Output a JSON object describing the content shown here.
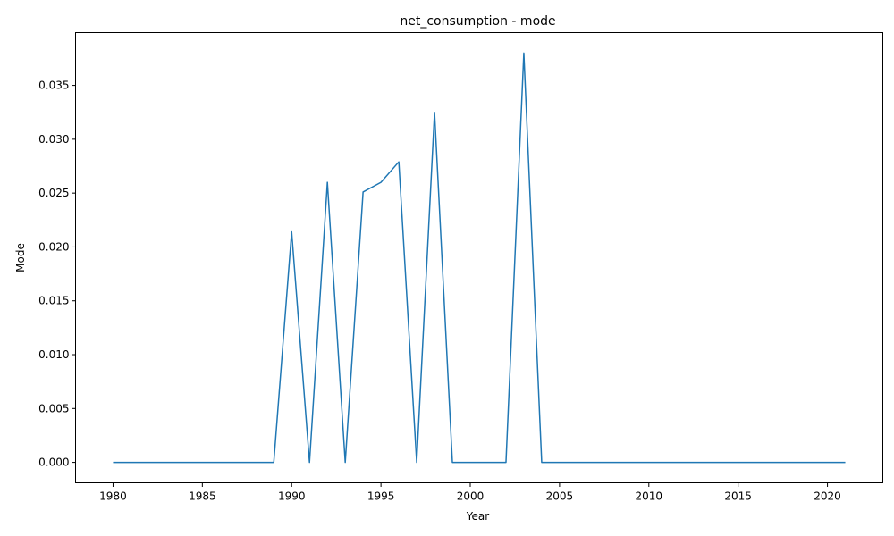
{
  "chart_data": {
    "type": "line",
    "title": "net_consumption - mode",
    "xlabel": "Year",
    "ylabel": "Mode",
    "xlim": [
      1977.9,
      2023.1
    ],
    "ylim": [
      -0.0019,
      0.0399
    ],
    "grid": false,
    "x_ticks": [
      1980,
      1985,
      1990,
      1995,
      2000,
      2005,
      2010,
      2015,
      2020
    ],
    "y_ticks": [
      0.0,
      0.005,
      0.01,
      0.015,
      0.02,
      0.025,
      0.03,
      0.035
    ],
    "y_tick_labels": [
      "0.000",
      "0.005",
      "0.010",
      "0.015",
      "0.020",
      "0.025",
      "0.030",
      "0.035"
    ],
    "series": [
      {
        "color": "#1f77b4",
        "x": [
          1980,
          1981,
          1982,
          1983,
          1984,
          1985,
          1986,
          1987,
          1988,
          1989,
          1990,
          1991,
          1992,
          1993,
          1994,
          1995,
          1996,
          1997,
          1998,
          1999,
          2000,
          2001,
          2002,
          2003,
          2004,
          2005,
          2006,
          2007,
          2008,
          2009,
          2010,
          2011,
          2012,
          2013,
          2014,
          2015,
          2016,
          2017,
          2018,
          2019,
          2020,
          2021
        ],
        "y": [
          0,
          0,
          0,
          0,
          0,
          0,
          0,
          0,
          0,
          0,
          0.0214,
          0,
          0.026,
          0,
          0.0251,
          0.026,
          0.0279,
          0,
          0.0325,
          0,
          0,
          0,
          0,
          0.038,
          0,
          0,
          0,
          0,
          0,
          0,
          0,
          0,
          0,
          0,
          0,
          0,
          0,
          0,
          0,
          0,
          0,
          0
        ]
      }
    ]
  }
}
